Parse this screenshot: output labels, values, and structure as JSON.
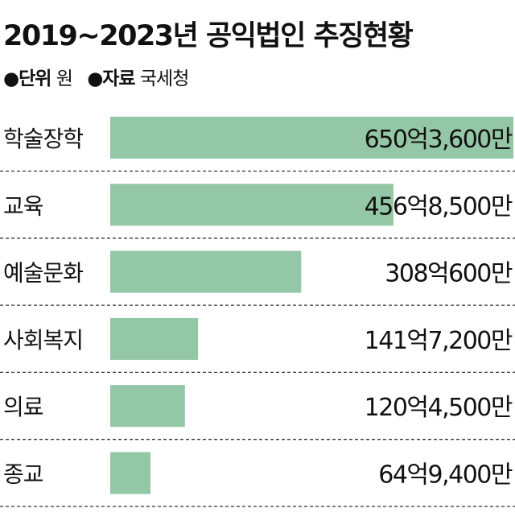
{
  "title": "2019~2023년 공익법인 추징현황",
  "unit_label": "●단위",
  "unit": "원",
  "source_label": "●자료",
  "source": "국세청",
  "colors": {
    "bar": "#94c7a5",
    "divider": "#333333"
  },
  "chart_data": {
    "type": "bar",
    "orientation": "horizontal",
    "title": "2019~2023년 공익법인 추징현황",
    "categories": [
      "학술장학",
      "교육",
      "예술문화",
      "사회복지",
      "의료",
      "종교"
    ],
    "values": [
      650.36,
      456.85,
      308.06,
      141.72,
      120.45,
      64.94
    ],
    "value_unit": "억원",
    "data_labels": [
      "650억3,600만",
      "456억8,500만",
      "308억600만",
      "141억7,200만",
      "120억4,500만",
      "64억9,400만"
    ],
    "xlim": [
      0,
      650.36
    ],
    "grid": false,
    "legend": "none"
  }
}
